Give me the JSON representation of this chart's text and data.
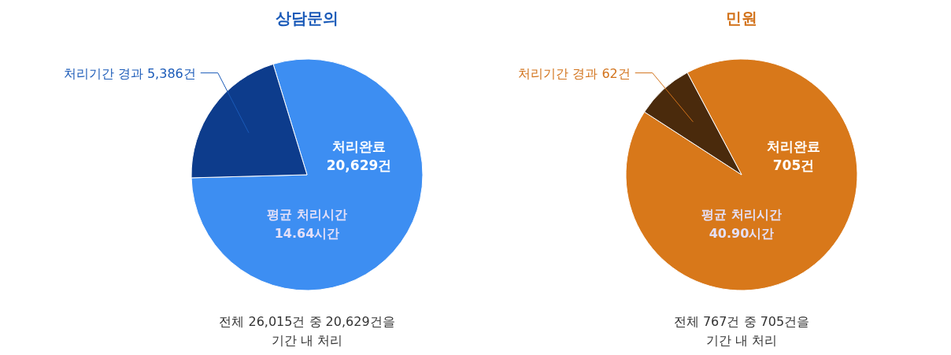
{
  "chart_data": [
    {
      "type": "pie",
      "title": "상담문의",
      "categories": [
        "처리완료\n20,629건",
        "처리기간 경과 5,386건"
      ],
      "values": [
        20629,
        5386
      ],
      "colors": [
        "#3d8ef2",
        "#0d3c8c"
      ],
      "annotations": [
        "평균 처리시간\n14.64시간",
        "전체 26,015건 중 20,629건을\n기간 내 처리"
      ]
    },
    {
      "type": "pie",
      "title": "민원",
      "categories": [
        "처리완료\n705건",
        "처리기간 경과 62건"
      ],
      "values": [
        705,
        62
      ],
      "colors": [
        "#d8781a",
        "#4a2a0c"
      ],
      "annotations": [
        "평균 처리시간\n40.90시간",
        "전체 767건 중 705건을\n기간 내 처리"
      ]
    }
  ]
}
